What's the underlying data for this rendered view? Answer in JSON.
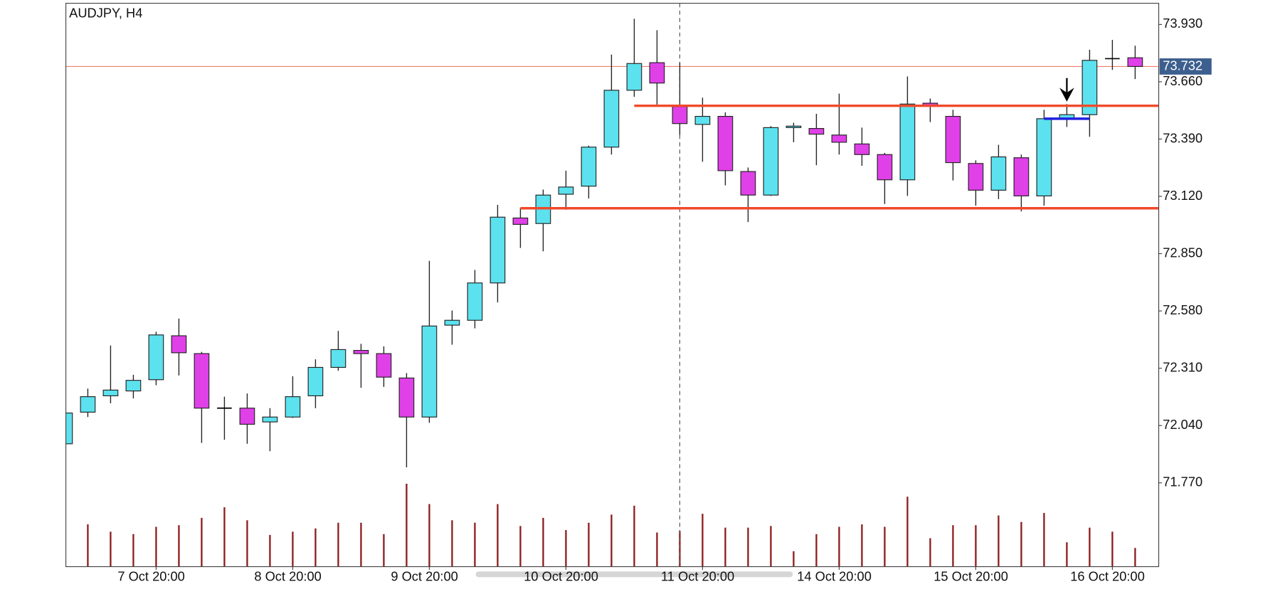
{
  "chart_data": {
    "type": "candlestick",
    "title": "AUDJPY, H4",
    "categories": [
      null,
      null,
      null,
      null,
      "7 Oct 20:00",
      null,
      null,
      null,
      null,
      null,
      "8 Oct 20:00",
      null,
      null,
      null,
      null,
      null,
      "9 Oct 20:00",
      null,
      null,
      null,
      null,
      null,
      "10 Oct 20:00",
      null,
      null,
      null,
      null,
      null,
      "11 Oct 20:00",
      null,
      null,
      null,
      null,
      null,
      "14 Oct 20:00",
      null,
      null,
      null,
      null,
      null,
      "15 Oct 20:00",
      null,
      null,
      null,
      null,
      null,
      "16 Oct 20:00",
      null
    ],
    "open": [
      71.954,
      72.103,
      72.18,
      72.203,
      72.256,
      72.463,
      72.379,
      72.122,
      72.122,
      72.057,
      72.08,
      72.18,
      72.314,
      72.394,
      72.379,
      72.264,
      72.08,
      72.513,
      72.536,
      72.712,
      73.018,
      72.992,
      73.13,
      73.168,
      73.352,
      73.62,
      73.75,
      73.543,
      73.459,
      73.497,
      73.237,
      73.126,
      73.444,
      73.44,
      73.409,
      73.367,
      73.317,
      73.198,
      73.559,
      73.497,
      73.275,
      73.149,
      73.302,
      73.122,
      73.486,
      73.505,
      73.769,
      73.773
    ],
    "high": [
      72.1,
      72.214,
      72.417,
      72.279,
      72.482,
      72.544,
      72.387,
      72.176,
      72.191,
      72.122,
      72.272,
      72.352,
      72.486,
      72.425,
      72.413,
      72.287,
      72.816,
      72.582,
      72.773,
      73.08,
      73.064,
      73.152,
      73.241,
      73.359,
      73.788,
      73.957,
      73.903,
      73.75,
      73.585,
      73.516,
      73.256,
      73.451,
      73.467,
      73.509,
      73.604,
      73.444,
      73.325,
      73.685,
      73.581,
      73.528,
      73.29,
      73.363,
      73.317,
      73.528,
      73.555,
      73.811,
      73.857,
      73.83
    ],
    "low": [
      71.95,
      72.08,
      72.145,
      72.168,
      72.23,
      72.276,
      71.958,
      71.973,
      71.954,
      71.919,
      72.076,
      72.122,
      72.298,
      72.218,
      72.222,
      71.843,
      72.053,
      72.421,
      72.498,
      72.62,
      72.877,
      72.861,
      73.057,
      73.11,
      73.317,
      73.589,
      73.547,
      73.409,
      73.283,
      73.172,
      72.999,
      73.122,
      73.375,
      73.267,
      73.317,
      73.264,
      73.084,
      73.122,
      73.47,
      73.195,
      73.076,
      73.107,
      73.049,
      73.076,
      73.447,
      73.401,
      73.716,
      73.673
    ],
    "close": [
      72.099,
      72.176,
      72.207,
      72.253,
      72.467,
      72.383,
      72.122,
      72.122,
      72.046,
      72.08,
      72.176,
      72.314,
      72.398,
      72.379,
      72.268,
      72.08,
      72.509,
      72.536,
      72.712,
      73.022,
      72.988,
      73.126,
      73.164,
      73.352,
      73.62,
      73.746,
      73.654,
      73.463,
      73.497,
      73.241,
      73.126,
      73.444,
      73.451,
      73.413,
      73.375,
      73.317,
      73.198,
      73.555,
      73.547,
      73.279,
      73.149,
      73.306,
      73.122,
      73.486,
      73.505,
      73.761,
      73.769,
      73.732
    ],
    "volume": [
      null,
      52,
      43,
      40,
      49,
      51,
      60,
      73,
      57,
      39,
      43,
      47,
      54,
      54,
      40,
      102,
      77,
      57,
      54,
      77,
      50,
      60,
      45,
      54,
      64,
      75,
      42,
      44,
      65,
      48,
      48,
      50,
      19,
      40,
      49,
      52,
      49,
      86,
      35,
      51,
      51,
      63,
      55,
      66,
      30,
      48,
      43,
      23
    ],
    "up_color": "#5ce1ee",
    "down_color": "#e040e8",
    "volume_color": "#8b1a1a",
    "ylim": [
      71.375,
      74.03
    ],
    "yticks": [
      {
        "value": 73.93,
        "label": "73.930"
      },
      {
        "value": 73.66,
        "label": "73.660"
      },
      {
        "value": 73.39,
        "label": "73.390"
      },
      {
        "value": 73.12,
        "label": "73.120"
      },
      {
        "value": 72.85,
        "label": "72.850"
      },
      {
        "value": 72.58,
        "label": "72.580"
      },
      {
        "value": 72.31,
        "label": "72.310"
      },
      {
        "value": 72.04,
        "label": "72.040"
      },
      {
        "value": 71.77,
        "label": "71.770"
      }
    ],
    "levels": [
      {
        "value": 73.547,
        "color": "#f04a2a",
        "from": 25
      },
      {
        "value": 73.064,
        "color": "#f04a2a",
        "from": 20
      },
      {
        "value": 73.486,
        "color": "#2020e0",
        "from": 43,
        "to": 45
      }
    ],
    "price_line_color": "#f08070",
    "marker_line": 27,
    "arrow_at": 44
  }
}
